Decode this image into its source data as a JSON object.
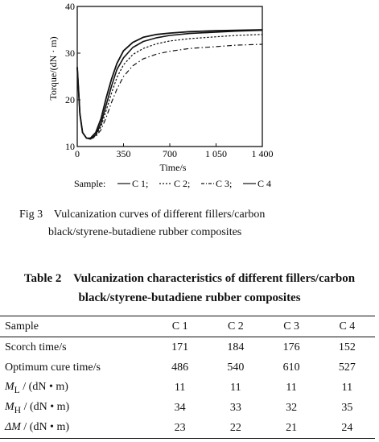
{
  "chart_data": {
    "type": "line",
    "xlabel": "Time/s",
    "ylabel": "Torque/(dN · m)",
    "xlim": [
      0,
      1400
    ],
    "ylim": [
      10,
      40
    ],
    "x_ticks": [
      "0",
      "350",
      "700",
      "1 050",
      "1 400"
    ],
    "y_ticks": [
      "10",
      "20",
      "30",
      "40"
    ],
    "legend_label": "Sample:",
    "legend_position": "bottom",
    "series": [
      {
        "name": "C 1",
        "style": "solid",
        "x": [
          0,
          20,
          40,
          70,
          100,
          140,
          180,
          220,
          260,
          300,
          350,
          420,
          500,
          600,
          700,
          850,
          1050,
          1200,
          1400
        ],
        "y": [
          27,
          17,
          13,
          11.8,
          11.6,
          12.5,
          15,
          19,
          23,
          26.5,
          29,
          31.2,
          32.5,
          33.3,
          33.8,
          34.2,
          34.5,
          34.7,
          34.9
        ]
      },
      {
        "name": "C 2",
        "style": "dash",
        "x": [
          0,
          20,
          40,
          70,
          100,
          140,
          180,
          220,
          260,
          300,
          350,
          420,
          500,
          600,
          700,
          850,
          1050,
          1200,
          1400
        ],
        "y": [
          27,
          17,
          13,
          11.8,
          11.7,
          12.3,
          14.3,
          17.8,
          21.5,
          24.8,
          27.5,
          29.7,
          31,
          32,
          32.6,
          33.1,
          33.5,
          33.8,
          34
        ]
      },
      {
        "name": "C 3",
        "style": "dashdot",
        "x": [
          0,
          20,
          40,
          70,
          100,
          140,
          180,
          220,
          260,
          300,
          350,
          420,
          500,
          600,
          700,
          850,
          1050,
          1200,
          1400
        ],
        "y": [
          27,
          17,
          13,
          11.8,
          11.6,
          12.1,
          13.6,
          16.3,
          19.5,
          22.3,
          25,
          27.3,
          28.8,
          29.8,
          30.4,
          31,
          31.4,
          31.7,
          31.9
        ]
      },
      {
        "name": "C 4",
        "style": "solid",
        "x": [
          0,
          20,
          40,
          70,
          100,
          140,
          180,
          220,
          260,
          300,
          350,
          420,
          500,
          600,
          700,
          850,
          1050,
          1200,
          1400
        ],
        "y": [
          27,
          17,
          13,
          11.8,
          11.8,
          13,
          16,
          20.5,
          24.5,
          27.8,
          30.5,
          32.3,
          33.4,
          34,
          34.3,
          34.6,
          34.8,
          34.9,
          35
        ]
      }
    ]
  },
  "figure": {
    "caption_line1": "Fig 3    Vulcanization curves of different fillers/carbon",
    "caption_line2": "black/styrene-butadiene rubber composites"
  },
  "table": {
    "title_line1": "Table 2    Vulcanization characteristics of different fillers/carbon",
    "title_line2": "black/styrene-butadiene rubber composites",
    "columns": [
      "Sample",
      "C 1",
      "C 2",
      "C 3",
      "C 4"
    ],
    "rows": [
      {
        "label": "Scorch time/s",
        "values": [
          "171",
          "184",
          "176",
          "152"
        ]
      },
      {
        "label": "Optimum cure time/s",
        "values": [
          "486",
          "540",
          "610",
          "527"
        ]
      },
      {
        "label_sym": "M",
        "label_sub": "L",
        "label_rest": " / (dN • m)",
        "values": [
          "11",
          "11",
          "11",
          "11"
        ]
      },
      {
        "label_sym": "M",
        "label_sub": "H",
        "label_rest": " / (dN • m)",
        "values": [
          "34",
          "33",
          "32",
          "35"
        ]
      },
      {
        "label_sym": "ΔM",
        "label_sub": "",
        "label_rest": " / (dN • m)",
        "values": [
          "23",
          "22",
          "21",
          "24"
        ]
      }
    ]
  }
}
